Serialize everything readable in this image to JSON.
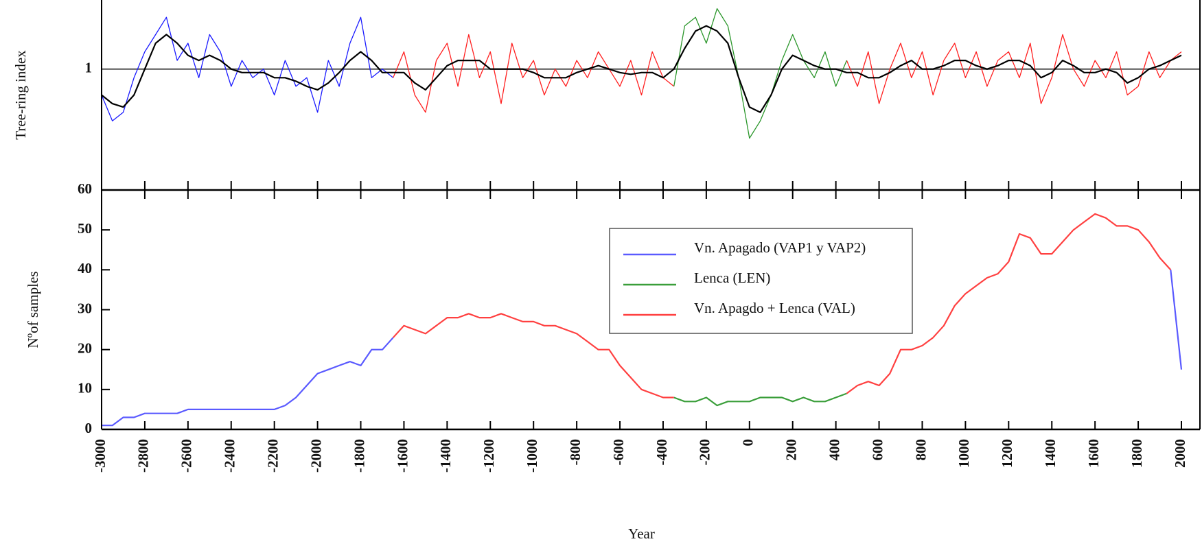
{
  "chart_data": [
    {
      "type": "line",
      "ylabel": "Tree-ring index",
      "xlim": [
        -3000,
        2000
      ],
      "ylim": [
        0.3,
        1.4
      ],
      "yticks": [
        1
      ],
      "grid": true,
      "x": [
        -3000,
        -2950,
        -2900,
        -2850,
        -2800,
        -2750,
        -2700,
        -2650,
        -2600,
        -2550,
        -2500,
        -2450,
        -2400,
        -2350,
        -2300,
        -2250,
        -2200,
        -2150,
        -2100,
        -2050,
        -2000,
        -1950,
        -1900,
        -1850,
        -1800,
        -1750,
        -1700,
        -1650,
        -1600,
        -1550,
        -1500,
        -1450,
        -1400,
        -1350,
        -1300,
        -1250,
        -1200,
        -1150,
        -1100,
        -1050,
        -1000,
        -950,
        -900,
        -850,
        -800,
        -750,
        -700,
        -650,
        -600,
        -550,
        -500,
        -450,
        -400,
        -350,
        -300,
        -250,
        -200,
        -150,
        -100,
        -50,
        0,
        50,
        100,
        150,
        200,
        250,
        300,
        350,
        400,
        450,
        500,
        550,
        600,
        650,
        700,
        750,
        800,
        850,
        900,
        950,
        1000,
        1050,
        1100,
        1150,
        1200,
        1250,
        1300,
        1350,
        1400,
        1450,
        1500,
        1550,
        1600,
        1650,
        1700,
        1750,
        1800,
        1850,
        1900,
        1950,
        2000
      ],
      "series": [
        {
          "color": "#1a1aff",
          "values": [
            0.85,
            0.7,
            0.75,
            0.95,
            1.1,
            1.2,
            1.3,
            1.05,
            1.15,
            0.95,
            1.2,
            1.1,
            0.9,
            1.05,
            0.95,
            1.0,
            0.85,
            1.05,
            0.9,
            0.95,
            0.75,
            1.05,
            0.9,
            1.15,
            1.3,
            0.95,
            1.0,
            0.95,
            null,
            null,
            null,
            null,
            null,
            null,
            null,
            null,
            null,
            null,
            null,
            null,
            null,
            null,
            null,
            null,
            null,
            null,
            null,
            null,
            null,
            null,
            null,
            null,
            null,
            null,
            null,
            null,
            null,
            null,
            null,
            null,
            null,
            null,
            null,
            null,
            null,
            null,
            null,
            null,
            null,
            null,
            null,
            null,
            null,
            null,
            null,
            null,
            null,
            null,
            null,
            null,
            null,
            null,
            null,
            null,
            null,
            null,
            null,
            null,
            null,
            null,
            null,
            null,
            null,
            null,
            null,
            null,
            null,
            null,
            null,
            null,
            null
          ]
        },
        {
          "color": "#ff1f1f",
          "values": [
            null,
            null,
            null,
            null,
            null,
            null,
            null,
            null,
            null,
            null,
            null,
            null,
            null,
            null,
            null,
            null,
            null,
            null,
            null,
            null,
            null,
            null,
            null,
            null,
            null,
            null,
            null,
            0.95,
            1.1,
            0.85,
            0.75,
            1.05,
            1.15,
            0.9,
            1.2,
            0.95,
            1.1,
            0.8,
            1.15,
            0.95,
            1.05,
            0.85,
            1.0,
            0.9,
            1.05,
            0.95,
            1.1,
            1.0,
            0.9,
            1.05,
            0.85,
            1.1,
            0.95,
            0.9,
            null,
            null,
            null,
            null,
            null,
            null,
            null,
            null,
            null,
            null,
            null,
            null,
            null,
            null,
            null,
            1.05,
            0.9,
            1.1,
            0.8,
            1.0,
            1.15,
            0.95,
            1.1,
            0.85,
            1.05,
            1.15,
            0.95,
            1.1,
            0.9,
            1.05,
            1.1,
            0.95,
            1.15,
            0.8,
            0.95,
            1.2,
            1.0,
            0.9,
            1.05,
            0.95,
            1.1,
            0.85,
            0.9,
            1.1,
            0.95,
            1.05,
            1.1
          ]
        },
        {
          "color": "#2a962a",
          "values": [
            null,
            null,
            null,
            null,
            null,
            null,
            null,
            null,
            null,
            null,
            null,
            null,
            null,
            null,
            null,
            null,
            null,
            null,
            null,
            null,
            null,
            null,
            null,
            null,
            null,
            null,
            null,
            null,
            null,
            null,
            null,
            null,
            null,
            null,
            null,
            null,
            null,
            null,
            null,
            null,
            null,
            null,
            null,
            null,
            null,
            null,
            null,
            null,
            null,
            null,
            null,
            null,
            null,
            0.9,
            1.25,
            1.3,
            1.15,
            1.35,
            1.25,
            0.95,
            0.6,
            0.7,
            0.85,
            1.05,
            1.2,
            1.05,
            0.95,
            1.1,
            0.9,
            1.05,
            null,
            null,
            null,
            null,
            null,
            null,
            null,
            null,
            null,
            null,
            null,
            null,
            null,
            null,
            null,
            null,
            null,
            null,
            null,
            null,
            null,
            null,
            null,
            null,
            null,
            null,
            null,
            null,
            null,
            null,
            null
          ]
        },
        {
          "color": "#000000",
          "values": [
            0.85,
            0.8,
            0.78,
            0.85,
            1.0,
            1.15,
            1.2,
            1.15,
            1.08,
            1.05,
            1.08,
            1.05,
            1.0,
            0.98,
            0.98,
            0.98,
            0.95,
            0.95,
            0.93,
            0.9,
            0.88,
            0.92,
            0.98,
            1.05,
            1.1,
            1.05,
            0.98,
            0.98,
            0.98,
            0.92,
            0.88,
            0.95,
            1.02,
            1.05,
            1.05,
            1.05,
            1.0,
            1.0,
            1.0,
            1.0,
            0.98,
            0.95,
            0.95,
            0.95,
            0.98,
            1.0,
            1.02,
            1.0,
            0.98,
            0.97,
            0.98,
            0.98,
            0.95,
            1.0,
            1.12,
            1.22,
            1.25,
            1.22,
            1.15,
            0.95,
            0.78,
            0.75,
            0.85,
            1.0,
            1.08,
            1.05,
            1.02,
            1.0,
            1.0,
            0.98,
            0.98,
            0.95,
            0.95,
            0.98,
            1.02,
            1.05,
            1.0,
            1.0,
            1.02,
            1.05,
            1.05,
            1.02,
            1.0,
            1.02,
            1.05,
            1.05,
            1.02,
            0.95,
            0.98,
            1.05,
            1.02,
            0.98,
            0.98,
            1.0,
            0.98,
            0.92,
            0.95,
            1.0,
            1.02,
            1.05,
            1.08
          ]
        }
      ]
    },
    {
      "type": "line",
      "ylabel": "Nºof samples",
      "xlabel": "Year",
      "xlim": [
        -3000,
        2000
      ],
      "ylim": [
        0,
        60
      ],
      "yticks": [
        0,
        10,
        20,
        30,
        40,
        50,
        60
      ],
      "grid": false,
      "legend": "center",
      "xticks": [
        -3000,
        -2800,
        -2600,
        -2400,
        -2200,
        -2000,
        -1800,
        -1600,
        -1400,
        -1200,
        -1000,
        -800,
        -600,
        -400,
        -200,
        0,
        200,
        400,
        600,
        800,
        1000,
        1200,
        1400,
        1600,
        1800,
        2000
      ],
      "x": [
        -3000,
        -2950,
        -2900,
        -2850,
        -2800,
        -2750,
        -2700,
        -2650,
        -2600,
        -2550,
        -2500,
        -2450,
        -2400,
        -2350,
        -2300,
        -2250,
        -2200,
        -2150,
        -2100,
        -2050,
        -2000,
        -1950,
        -1900,
        -1850,
        -1800,
        -1750,
        -1700,
        -1650,
        -1600,
        -1550,
        -1500,
        -1450,
        -1400,
        -1350,
        -1300,
        -1250,
        -1200,
        -1150,
        -1100,
        -1050,
        -1000,
        -950,
        -900,
        -850,
        -800,
        -750,
        -700,
        -650,
        -600,
        -550,
        -500,
        -450,
        -400,
        -350,
        -300,
        -250,
        -200,
        -150,
        -100,
        -50,
        0,
        50,
        100,
        150,
        200,
        250,
        300,
        350,
        400,
        450,
        500,
        550,
        600,
        650,
        700,
        750,
        800,
        850,
        900,
        950,
        1000,
        1050,
        1100,
        1150,
        1200,
        1250,
        1300,
        1350,
        1400,
        1450,
        1500,
        1550,
        1600,
        1650,
        1700,
        1750,
        1800,
        1850,
        1900,
        1950,
        2000
      ],
      "series": [
        {
          "name": "Vn. Apagado (VAP1 y VAP2)",
          "color": "#5a5aff",
          "values": [
            1,
            1,
            3,
            3,
            4,
            4,
            4,
            4,
            5,
            5,
            5,
            5,
            5,
            5,
            5,
            5,
            5,
            6,
            8,
            11,
            14,
            15,
            16,
            17,
            16,
            20,
            20,
            23,
            null,
            null,
            null,
            null,
            null,
            null,
            null,
            null,
            null,
            null,
            null,
            null,
            null,
            null,
            null,
            null,
            null,
            null,
            null,
            null,
            null,
            null,
            null,
            null,
            null,
            null,
            null,
            null,
            null,
            null,
            null,
            null,
            null,
            null,
            null,
            null,
            null,
            null,
            null,
            null,
            null,
            null,
            null,
            null,
            null,
            null,
            null,
            null,
            null,
            null,
            null,
            null,
            null,
            null,
            null,
            null,
            null,
            null,
            null,
            null,
            null,
            null,
            null,
            null,
            null,
            null,
            null,
            null,
            null,
            null,
            null,
            40,
            15
          ]
        },
        {
          "name": "Lenca (LEN)",
          "color": "#3a9e3a",
          "values": [
            null,
            null,
            null,
            null,
            null,
            null,
            null,
            null,
            null,
            null,
            null,
            null,
            null,
            null,
            null,
            null,
            null,
            null,
            null,
            null,
            null,
            null,
            null,
            null,
            null,
            null,
            null,
            null,
            null,
            null,
            null,
            null,
            null,
            null,
            null,
            null,
            null,
            null,
            null,
            null,
            null,
            null,
            null,
            null,
            null,
            null,
            null,
            null,
            null,
            null,
            null,
            null,
            null,
            8,
            7,
            7,
            8,
            6,
            7,
            7,
            7,
            8,
            8,
            8,
            7,
            8,
            7,
            7,
            8,
            9,
            null,
            null,
            null,
            null,
            null,
            null,
            null,
            null,
            null,
            null,
            null,
            null,
            null,
            null,
            null,
            null,
            null,
            null,
            null,
            null,
            null,
            null,
            null,
            null,
            null,
            null,
            null,
            null,
            null,
            null,
            null
          ]
        },
        {
          "name": "Vn. Apagdo + Lenca (VAL)",
          "color": "#ff4040",
          "values": [
            null,
            null,
            null,
            null,
            null,
            null,
            null,
            null,
            null,
            null,
            null,
            null,
            null,
            null,
            null,
            null,
            null,
            null,
            null,
            null,
            null,
            null,
            null,
            null,
            null,
            null,
            null,
            23,
            26,
            25,
            24,
            26,
            28,
            28,
            29,
            28,
            28,
            29,
            28,
            27,
            27,
            26,
            26,
            25,
            24,
            22,
            20,
            20,
            16,
            13,
            10,
            9,
            8,
            8,
            null,
            null,
            null,
            null,
            null,
            null,
            null,
            null,
            null,
            null,
            null,
            null,
            null,
            null,
            null,
            9,
            11,
            12,
            11,
            14,
            20,
            20,
            21,
            23,
            26,
            31,
            34,
            36,
            38,
            39,
            42,
            49,
            48,
            44,
            44,
            47,
            50,
            52,
            54,
            53,
            51,
            51,
            50,
            47,
            43,
            40,
            null
          ]
        }
      ]
    }
  ]
}
